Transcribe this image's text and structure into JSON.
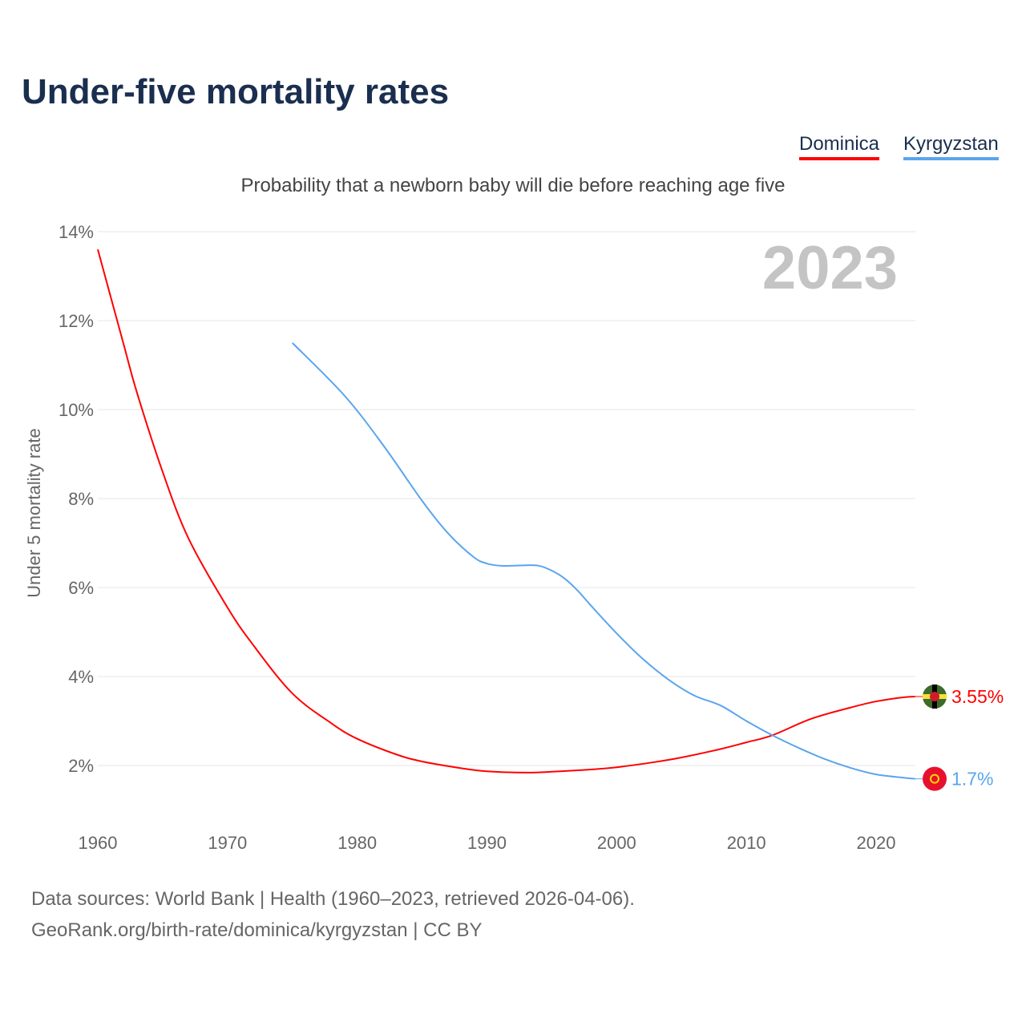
{
  "title": "Under-five mortality rates",
  "subtitle": "Probability that a newborn baby will die before reaching age five",
  "legend": [
    {
      "name": "Dominica",
      "color": "#ff0000"
    },
    {
      "name": "Kyrgyzstan",
      "color": "#5aa5ee"
    }
  ],
  "year_watermark": "2023",
  "sources": {
    "line1": "Data sources: World Bank | Health (1960–2023, retrieved 2026-04-06).",
    "line2": "GeoRank.org/birth-rate/dominica/kyrgyzstan | CC BY"
  },
  "chart_data": {
    "type": "line",
    "title": "Under-five mortality rates",
    "xlabel": "",
    "ylabel": "Under 5 mortality rate",
    "xlim": [
      1960,
      2023
    ],
    "ylim": [
      1,
      14
    ],
    "x_ticks": [
      1960,
      1970,
      1980,
      1990,
      2000,
      2010,
      2020
    ],
    "y_ticks": [
      2,
      4,
      6,
      8,
      10,
      12,
      14
    ],
    "y_tick_labels": [
      "2%",
      "4%",
      "6%",
      "8%",
      "10%",
      "12%",
      "14%"
    ],
    "grid": true,
    "series": [
      {
        "name": "Dominica",
        "color": "#ff0000",
        "end_label": "3.55%",
        "x": [
          1960,
          1962,
          1963,
          1965,
          1967,
          1970,
          1972,
          1975,
          1978,
          1980,
          1983,
          1985,
          1988,
          1990,
          1993,
          1995,
          1998,
          2000,
          2003,
          2005,
          2008,
          2010,
          2012,
          2015,
          2018,
          2020,
          2022,
          2023
        ],
        "y": [
          13.6,
          11.46,
          10.4,
          8.6,
          7.1,
          5.55,
          4.7,
          3.62,
          2.95,
          2.6,
          2.25,
          2.09,
          1.94,
          1.87,
          1.84,
          1.86,
          1.91,
          1.96,
          2.08,
          2.18,
          2.37,
          2.52,
          2.68,
          3.05,
          3.3,
          3.44,
          3.53,
          3.55
        ]
      },
      {
        "name": "Kyrgyzstan",
        "color": "#5aa5ee",
        "end_label": "1.7%",
        "x": [
          1975,
          1979,
          1982,
          1985,
          1987,
          1989,
          1990,
          1991,
          1992,
          1993,
          1994,
          1995,
          1996,
          1997,
          1998,
          2000,
          2002,
          2004,
          2006,
          2008,
          2010,
          2012,
          2014,
          2016,
          2018,
          2020,
          2022,
          2023
        ],
        "y": [
          11.5,
          10.32,
          9.2,
          7.95,
          7.22,
          6.68,
          6.54,
          6.49,
          6.49,
          6.5,
          6.49,
          6.38,
          6.2,
          5.93,
          5.6,
          4.97,
          4.4,
          3.93,
          3.57,
          3.35,
          3.0,
          2.68,
          2.4,
          2.15,
          1.95,
          1.8,
          1.73,
          1.7
        ]
      }
    ]
  }
}
